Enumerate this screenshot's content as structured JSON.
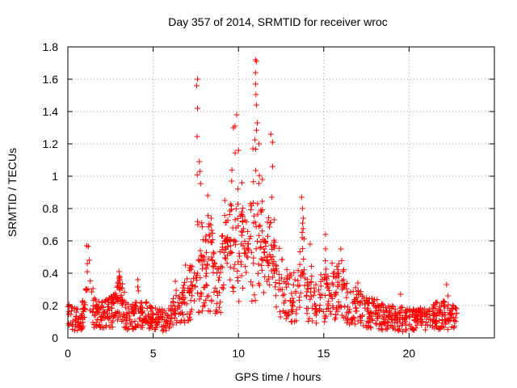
{
  "chart_data": {
    "type": "scatter",
    "title": "Day 357 of 2014, SRMTID for receiver wroc",
    "xlabel": "GPS time / hours",
    "ylabel": "SRMTID / TECUs",
    "xlim": [
      0,
      25
    ],
    "ylim": [
      0,
      1.8
    ],
    "x_ticks": [
      0,
      5,
      10,
      15,
      20
    ],
    "x_tick_labels": [
      "0",
      "5",
      "10",
      "15",
      "20"
    ],
    "y_ticks": [
      0,
      0.2,
      0.4,
      0.6,
      0.8,
      1.0,
      1.2,
      1.4,
      1.6,
      1.8
    ],
    "y_tick_labels": [
      "0",
      "0.2",
      "0.4",
      "0.6",
      "0.8",
      "1",
      "1.2",
      "1.4",
      "1.6",
      "1.8"
    ],
    "grid": true,
    "marker": "+",
    "marker_color": "#ff0000",
    "series": [
      {
        "name": "SRMTID",
        "envelope": [
          {
            "x": 0.0,
            "y": 0.14
          },
          {
            "x": 0.5,
            "y": 0.12
          },
          {
            "x": 1.0,
            "y": 0.16
          },
          {
            "x": 1.2,
            "y": 0.42
          },
          {
            "x": 1.5,
            "y": 0.18
          },
          {
            "x": 2.0,
            "y": 0.17
          },
          {
            "x": 2.5,
            "y": 0.16
          },
          {
            "x": 3.0,
            "y": 0.27
          },
          {
            "x": 3.5,
            "y": 0.14
          },
          {
            "x": 4.0,
            "y": 0.15
          },
          {
            "x": 4.5,
            "y": 0.15
          },
          {
            "x": 5.0,
            "y": 0.12
          },
          {
            "x": 5.5,
            "y": 0.12
          },
          {
            "x": 6.0,
            "y": 0.13
          },
          {
            "x": 6.5,
            "y": 0.18
          },
          {
            "x": 7.0,
            "y": 0.26
          },
          {
            "x": 7.5,
            "y": 0.35
          },
          {
            "x": 8.0,
            "y": 0.42
          },
          {
            "x": 8.5,
            "y": 0.44
          },
          {
            "x": 9.0,
            "y": 0.4
          },
          {
            "x": 9.5,
            "y": 0.52
          },
          {
            "x": 10.0,
            "y": 0.55
          },
          {
            "x": 10.5,
            "y": 0.5
          },
          {
            "x": 11.0,
            "y": 0.6
          },
          {
            "x": 11.5,
            "y": 0.5
          },
          {
            "x": 12.0,
            "y": 0.42
          },
          {
            "x": 12.5,
            "y": 0.35
          },
          {
            "x": 13.0,
            "y": 0.27
          },
          {
            "x": 13.5,
            "y": 0.28
          },
          {
            "x": 14.0,
            "y": 0.26
          },
          {
            "x": 14.5,
            "y": 0.24
          },
          {
            "x": 15.0,
            "y": 0.27
          },
          {
            "x": 15.5,
            "y": 0.3
          },
          {
            "x": 16.0,
            "y": 0.3
          },
          {
            "x": 16.5,
            "y": 0.22
          },
          {
            "x": 17.0,
            "y": 0.2
          },
          {
            "x": 17.5,
            "y": 0.17
          },
          {
            "x": 18.0,
            "y": 0.16
          },
          {
            "x": 18.5,
            "y": 0.14
          },
          {
            "x": 19.0,
            "y": 0.13
          },
          {
            "x": 19.5,
            "y": 0.1
          },
          {
            "x": 20.0,
            "y": 0.12
          },
          {
            "x": 20.5,
            "y": 0.12
          },
          {
            "x": 21.0,
            "y": 0.12
          },
          {
            "x": 21.5,
            "y": 0.14
          },
          {
            "x": 22.0,
            "y": 0.15
          },
          {
            "x": 22.5,
            "y": 0.14
          },
          {
            "x": 22.8,
            "y": 0.12
          }
        ],
        "peaks": [
          {
            "x": 1.1,
            "y": 0.57
          },
          {
            "x": 3.0,
            "y": 0.41
          },
          {
            "x": 4.1,
            "y": 0.36
          },
          {
            "x": 6.3,
            "y": 0.35
          },
          {
            "x": 6.9,
            "y": 0.45
          },
          {
            "x": 7.6,
            "y": 1.6
          },
          {
            "x": 7.55,
            "y": 1.56
          },
          {
            "x": 7.6,
            "y": 1.42
          },
          {
            "x": 7.7,
            "y": 1.09
          },
          {
            "x": 7.75,
            "y": 1.03
          },
          {
            "x": 8.2,
            "y": 0.88
          },
          {
            "x": 8.4,
            "y": 0.74
          },
          {
            "x": 9.2,
            "y": 0.85
          },
          {
            "x": 9.6,
            "y": 0.97
          },
          {
            "x": 9.7,
            "y": 1.3
          },
          {
            "x": 9.8,
            "y": 1.31
          },
          {
            "x": 9.9,
            "y": 1.38
          },
          {
            "x": 10.0,
            "y": 1.16
          },
          {
            "x": 10.2,
            "y": 0.96
          },
          {
            "x": 10.7,
            "y": 0.83
          },
          {
            "x": 10.85,
            "y": 1.17
          },
          {
            "x": 11.0,
            "y": 1.72
          },
          {
            "x": 11.05,
            "y": 1.71
          },
          {
            "x": 11.0,
            "y": 1.64
          },
          {
            "x": 11.0,
            "y": 1.57
          },
          {
            "x": 11.05,
            "y": 1.44
          },
          {
            "x": 11.1,
            "y": 1.33
          },
          {
            "x": 11.2,
            "y": 1.2
          },
          {
            "x": 11.4,
            "y": 0.98
          },
          {
            "x": 11.9,
            "y": 1.26
          },
          {
            "x": 12.0,
            "y": 1.21
          },
          {
            "x": 12.0,
            "y": 1.06
          },
          {
            "x": 11.95,
            "y": 0.87
          },
          {
            "x": 13.7,
            "y": 0.87
          },
          {
            "x": 13.75,
            "y": 0.8
          },
          {
            "x": 13.8,
            "y": 0.74
          },
          {
            "x": 14.2,
            "y": 0.58
          },
          {
            "x": 15.1,
            "y": 0.64
          },
          {
            "x": 16.0,
            "y": 0.55
          },
          {
            "x": 17.0,
            "y": 0.34
          },
          {
            "x": 19.5,
            "y": 0.27
          },
          {
            "x": 22.2,
            "y": 0.33
          }
        ]
      }
    ]
  }
}
